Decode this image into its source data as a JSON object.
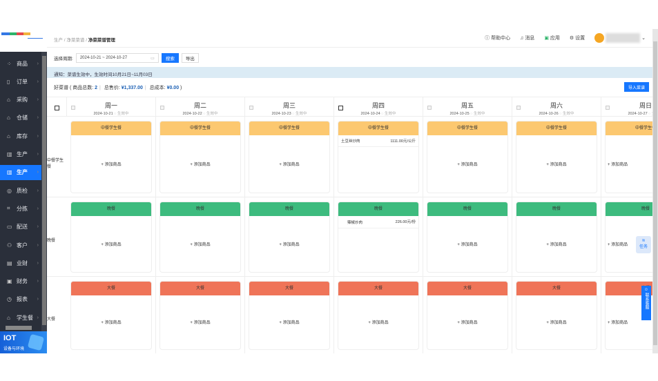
{
  "breadcrumb": [
    "生产",
    "净菜菜谱",
    "净菜菜谱管理"
  ],
  "header": {
    "help": "帮助中心",
    "messages": "消息",
    "apps": "应用",
    "settings": "设置"
  },
  "sidebar": {
    "items": [
      {
        "icon": "grid-icon",
        "glyph": "⁘",
        "label": "商品"
      },
      {
        "icon": "order-icon",
        "glyph": "▯",
        "label": "订单"
      },
      {
        "icon": "purchase-icon",
        "glyph": "⌂",
        "label": "采购"
      },
      {
        "icon": "warehouse-icon",
        "glyph": "⌂",
        "label": "仓储"
      },
      {
        "icon": "inventory-icon",
        "glyph": "⌂",
        "label": "库存"
      },
      {
        "icon": "factory-icon",
        "glyph": "▥",
        "label": "生产"
      },
      {
        "icon": "factory-icon",
        "glyph": "▥",
        "label": "生产",
        "active": true
      },
      {
        "icon": "shield-icon",
        "glyph": "◎",
        "label": "质检"
      },
      {
        "icon": "sort-icon",
        "glyph": "⌗",
        "label": "分拣"
      },
      {
        "icon": "truck-icon",
        "glyph": "▭",
        "label": "配送"
      },
      {
        "icon": "user-icon",
        "glyph": "⚇",
        "label": "客户"
      },
      {
        "icon": "chart-icon",
        "glyph": "▤",
        "label": "业财"
      },
      {
        "icon": "finance-icon",
        "glyph": "▣",
        "label": "财务"
      },
      {
        "icon": "clock-icon",
        "glyph": "◷",
        "label": "报表"
      },
      {
        "icon": "home-icon",
        "glyph": "⌂",
        "label": "学生餐"
      }
    ],
    "iot": {
      "title": "IOT",
      "subtitle": "设备与环境"
    }
  },
  "filter": {
    "label": "选择周期:",
    "range": "2024-10-21 ~ 2024-10-27",
    "search": "搜索",
    "export": "导出"
  },
  "notice": "通知：菜谱生效中，生效时间10月21日~11月03日",
  "summary": {
    "name": "好菜谱",
    "count_label": "商品总数:",
    "count": "2",
    "price_label": "总售价:",
    "price": "¥1,337.00",
    "cost_label": "总成本:",
    "cost": "¥0.00"
  },
  "import_button": "导入菜谱",
  "days": [
    {
      "name": "周一",
      "date": "2024-10-21",
      "status": "生效中"
    },
    {
      "name": "周二",
      "date": "2024-10-22",
      "status": "生效中"
    },
    {
      "name": "周三",
      "date": "2024-10-23",
      "status": "生效中"
    },
    {
      "name": "周四",
      "date": "2024-10-24",
      "status": "生效中"
    },
    {
      "name": "周五",
      "date": "2024-10-25",
      "status": "生效中"
    },
    {
      "name": "周六",
      "date": "2024-10-26",
      "status": "生效中"
    },
    {
      "name": "周日",
      "date": "2024-10-27",
      "status": "生效中"
    }
  ],
  "meals": [
    {
      "label": "中餐学生餐",
      "title": "中餐学生餐",
      "color": "#fcc870",
      "items": {
        "3": [
          {
            "name": "土豆丝炒肉",
            "price": "1111.00元/公斤"
          }
        ]
      }
    },
    {
      "label": "晚餐",
      "title": "晚餐",
      "color": "#3dbb7e",
      "items": {
        "3": [
          {
            "name": "辣椒炒肉",
            "price": "226.00元/份",
            "checkbox": true
          }
        ]
      }
    },
    {
      "label": "大餐",
      "title": "大餐",
      "color": "#ef7458",
      "items": {}
    }
  ],
  "add_label": "+ 添加商品",
  "float": {
    "task": "任务",
    "service": "联系客服"
  }
}
